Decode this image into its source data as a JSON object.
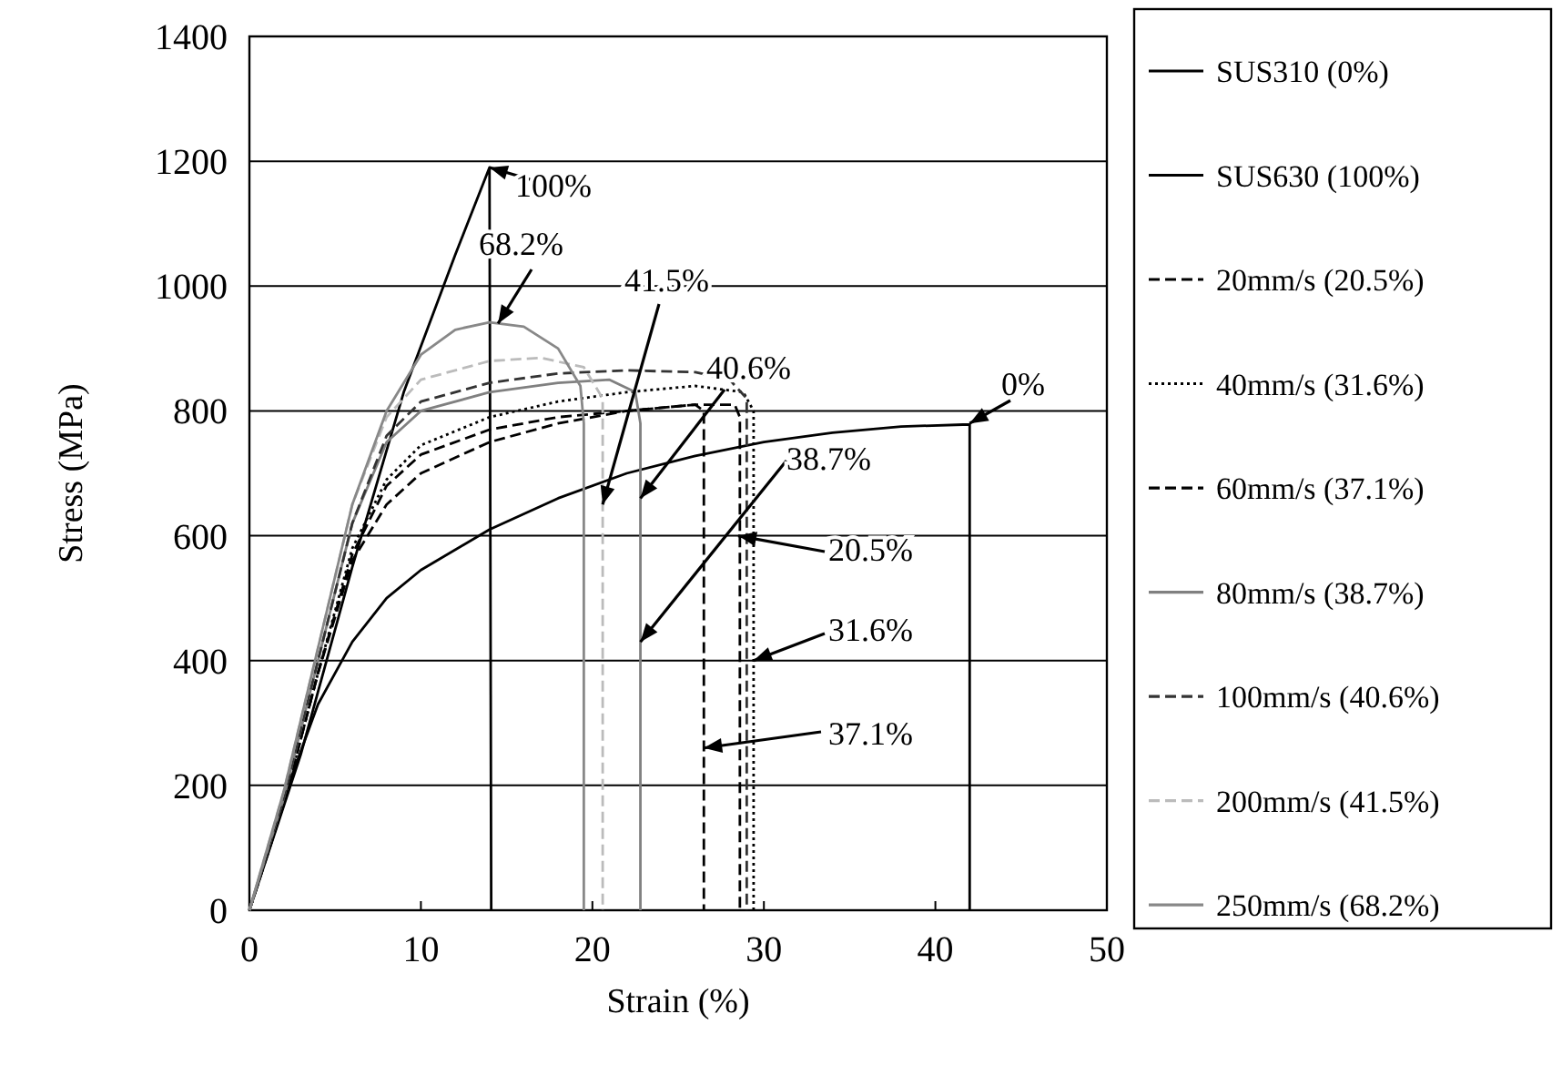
{
  "chart_data": {
    "type": "line",
    "xlabel": "Strain (%)",
    "ylabel": "Stress (MPa)",
    "xlim": [
      0,
      50
    ],
    "xticks": [
      0,
      10,
      20,
      30,
      40,
      50
    ],
    "ylim": [
      0,
      1400
    ],
    "yticks": [
      0,
      200,
      400,
      600,
      800,
      1000,
      1200,
      1400
    ],
    "grid": "y",
    "legend": "right",
    "series": [
      {
        "name": "SUS310 (0%)",
        "color": "#000000",
        "line_style": "solid",
        "x": [
          0,
          2,
          4,
          6,
          8,
          10,
          14,
          18,
          22,
          26,
          30,
          34,
          38,
          41.6,
          42,
          42
        ],
        "values": [
          0,
          180,
          330,
          430,
          500,
          545,
          610,
          660,
          700,
          728,
          750,
          765,
          775,
          778,
          778,
          0
        ]
      },
      {
        "name": "SUS630 (100%)",
        "color": "#000000",
        "line_style": "solid",
        "x": [
          0,
          3,
          6,
          9,
          12,
          14,
          14.1
        ],
        "values": [
          0,
          250,
          550,
          830,
          1050,
          1190,
          0
        ]
      },
      {
        "name": "20mm/s (20.5%)",
        "color": "#000000",
        "line_style": "dashed",
        "x": [
          0,
          2,
          4,
          6,
          8,
          10,
          14,
          18,
          22,
          26,
          28.3,
          28.6,
          28.6
        ],
        "values": [
          0,
          170,
          380,
          560,
          650,
          700,
          750,
          780,
          800,
          810,
          810,
          790,
          0
        ]
      },
      {
        "name": "40mm/s (31.6%)",
        "color": "#000000",
        "line_style": "dotted",
        "x": [
          0,
          2,
          4,
          6,
          8,
          10,
          14,
          18,
          22,
          26,
          28.8,
          29.4,
          29.4
        ],
        "values": [
          0,
          170,
          380,
          580,
          690,
          745,
          790,
          815,
          830,
          840,
          830,
          800,
          0
        ]
      },
      {
        "name": "60mm/s (37.1%)",
        "color": "#000000",
        "line_style": "dashed",
        "x": [
          0,
          2,
          4,
          6,
          8,
          10,
          14,
          18,
          22,
          26,
          26.5,
          26.5
        ],
        "values": [
          0,
          170,
          380,
          570,
          680,
          730,
          770,
          790,
          800,
          810,
          800,
          0
        ]
      },
      {
        "name": "80mm/s (38.7%)",
        "color": "#808080",
        "line_style": "solid",
        "x": [
          0,
          2,
          4,
          6,
          8,
          10,
          14,
          18,
          21,
          22.5,
          22.8,
          22.8
        ],
        "values": [
          0,
          180,
          400,
          620,
          750,
          800,
          830,
          845,
          850,
          830,
          780,
          0
        ]
      },
      {
        "name": "100mm/s (40.6%)",
        "color": "#333333",
        "line_style": "dashed",
        "x": [
          0,
          2,
          4,
          6,
          8,
          10,
          14,
          18,
          22,
          26,
          28,
          29,
          29
        ],
        "values": [
          0,
          180,
          400,
          620,
          760,
          815,
          845,
          860,
          865,
          862,
          850,
          820,
          0
        ]
      },
      {
        "name": "200mm/s (41.5%)",
        "color": "#bbbbbb",
        "line_style": "dashed",
        "x": [
          0,
          2,
          4,
          6,
          8,
          10,
          14,
          17,
          19.5,
          20.6,
          20.6
        ],
        "values": [
          0,
          190,
          420,
          650,
          790,
          850,
          880,
          885,
          870,
          820,
          0
        ]
      },
      {
        "name": "250mm/s (68.2%)",
        "color": "#888888",
        "line_style": "solid",
        "x": [
          0,
          2,
          4,
          6,
          8,
          10,
          12,
          14,
          16,
          18,
          19.3,
          19.5,
          19.5
        ],
        "values": [
          0,
          190,
          420,
          650,
          800,
          890,
          930,
          942,
          935,
          900,
          840,
          780,
          0
        ]
      }
    ],
    "annotations": [
      {
        "text": "100%",
        "x": 14,
        "y": 1190
      },
      {
        "text": "68.2%",
        "x": 14.5,
        "y": 940
      },
      {
        "text": "41.5%",
        "x": 20.6,
        "y": 650
      },
      {
        "text": "40.6%",
        "x": 22.8,
        "y": 660
      },
      {
        "text": "38.7%",
        "x": 22.8,
        "y": 430
      },
      {
        "text": "20.5%",
        "x": 28.5,
        "y": 600
      },
      {
        "text": "31.6%",
        "x": 29.4,
        "y": 400
      },
      {
        "text": "37.1%",
        "x": 26.5,
        "y": 260
      },
      {
        "text": "0%",
        "x": 42,
        "y": 780
      }
    ]
  }
}
